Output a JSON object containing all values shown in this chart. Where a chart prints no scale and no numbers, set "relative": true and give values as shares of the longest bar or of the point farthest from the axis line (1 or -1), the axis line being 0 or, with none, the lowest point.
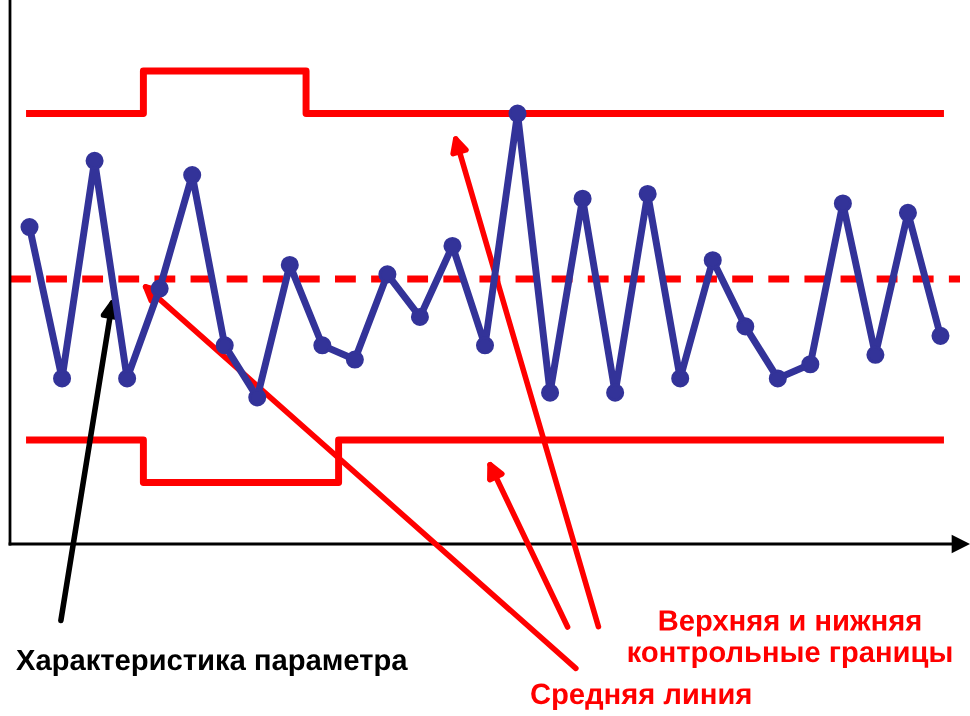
{
  "chart_data": {
    "type": "line",
    "relative": true,
    "categories": [
      null,
      null,
      null,
      null,
      null,
      null,
      null,
      null,
      null,
      null,
      null,
      null,
      null,
      null,
      null,
      null,
      null,
      null,
      null,
      null,
      null,
      null,
      null,
      null,
      null,
      null,
      null,
      null,
      null
    ],
    "series": [
      {
        "color": "#333399",
        "marker": "circle",
        "line_style": "solid",
        "values": [
          0.67,
          0.35,
          0.81,
          0.35,
          0.54,
          0.78,
          0.42,
          0.31,
          0.59,
          0.42,
          0.39,
          0.57,
          0.48,
          0.63,
          0.42,
          0.91,
          0.32,
          0.73,
          0.32,
          0.74,
          0.35,
          0.6,
          0.46,
          0.35,
          0.38,
          0.72,
          0.4,
          0.7,
          0.44
        ]
      },
      {
        "type": "step",
        "color": "#ff0000",
        "line_style": "solid",
        "values": [
          0.91,
          0.91,
          0.91,
          0.91,
          1,
          1,
          1,
          1,
          1,
          0.91,
          0.91,
          0.91,
          0.91,
          0.91,
          0.91,
          0.91,
          0.91,
          0.91,
          0.91,
          0.91,
          0.91,
          0.91,
          0.91,
          0.91,
          0.91,
          0.91,
          0.91,
          0.91,
          0.91
        ]
      },
      {
        "type": "step",
        "color": "#ff0000",
        "line_style": "solid",
        "values": [
          0.22,
          0.22,
          0.22,
          0.22,
          0.13,
          0.13,
          0.13,
          0.13,
          0.13,
          0.13,
          0.22,
          0.22,
          0.22,
          0.22,
          0.22,
          0.22,
          0.22,
          0.22,
          0.22,
          0.22,
          0.22,
          0.22,
          0.22,
          0.22,
          0.22,
          0.22,
          0.22,
          0.22,
          0.22
        ]
      }
    ],
    "ref_lines": [
      {
        "axis": "y",
        "value": 0.56,
        "color": "#ff0000",
        "line_style": "dashed"
      }
    ],
    "annotations": [
      "Характеристика параметра",
      "Средняя линия",
      "Верхняя и нижняя\nконтрольные границы"
    ]
  }
}
